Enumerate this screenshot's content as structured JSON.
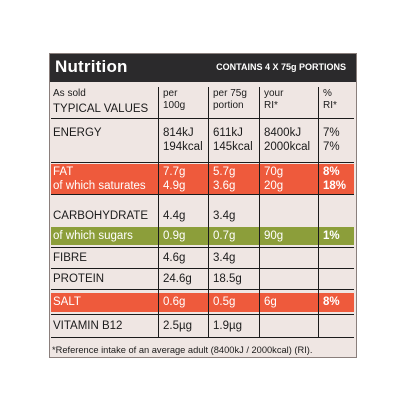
{
  "header": {
    "title": "Nutrition",
    "portions": "CONTAINS 4 X 75g PORTIONS"
  },
  "columns": {
    "as_sold": "As sold",
    "typical_values": "TYPICAL VALUES",
    "per100_l1": "per",
    "per100_l2": "100g",
    "per75_l1": "per 75g",
    "per75_l2": "portion",
    "ri_l1": "your",
    "ri_l2": "RI*",
    "pct_l1": "%",
    "pct_l2": "RI*"
  },
  "rows": {
    "energy": {
      "label": "ENERGY",
      "per100_kj": "814kJ",
      "per100_kcal": "194kcal",
      "per75_kj": "611kJ",
      "per75_kcal": "145kcal",
      "ri_kj": "8400kJ",
      "ri_kcal": "2000kcal",
      "pct_kj": "7%",
      "pct_kcal": "7%"
    },
    "fat": {
      "label": "FAT",
      "per100": "7.7g",
      "per75": "5.7g",
      "ri": "70g",
      "pct": "8%"
    },
    "saturates": {
      "label": "of which saturates",
      "per100": "4.9g",
      "per75": "3.6g",
      "ri": "20g",
      "pct": "18%"
    },
    "carbohydrate": {
      "label": "CARBOHYDRATE",
      "per100": "4.4g",
      "per75": "3.4g"
    },
    "sugars": {
      "label": "of which sugars",
      "per100": "0.9g",
      "per75": "0.7g",
      "ri": "90g",
      "pct": "1%"
    },
    "fibre": {
      "label": "FIBRE",
      "per100": "4.6g",
      "per75": "3.4g"
    },
    "protein": {
      "label": "PROTEIN",
      "per100": "24.6g",
      "per75": "18.5g"
    },
    "salt": {
      "label": "SALT",
      "per100": "0.6g",
      "per75": "0.5g",
      "ri": "6g",
      "pct": "8%"
    },
    "b12": {
      "label": "VITAMIN B12",
      "per100": "2.5µg",
      "per75": "1.9µg"
    }
  },
  "footnote": "*Reference intake of an average adult (8400kJ / 2000kcal) (RI).",
  "colors": {
    "header_bg": "#2b2a2c",
    "label_bg": "#efe6e3",
    "red_band": "#ee5a3c",
    "green_band": "#8c9e3a"
  }
}
